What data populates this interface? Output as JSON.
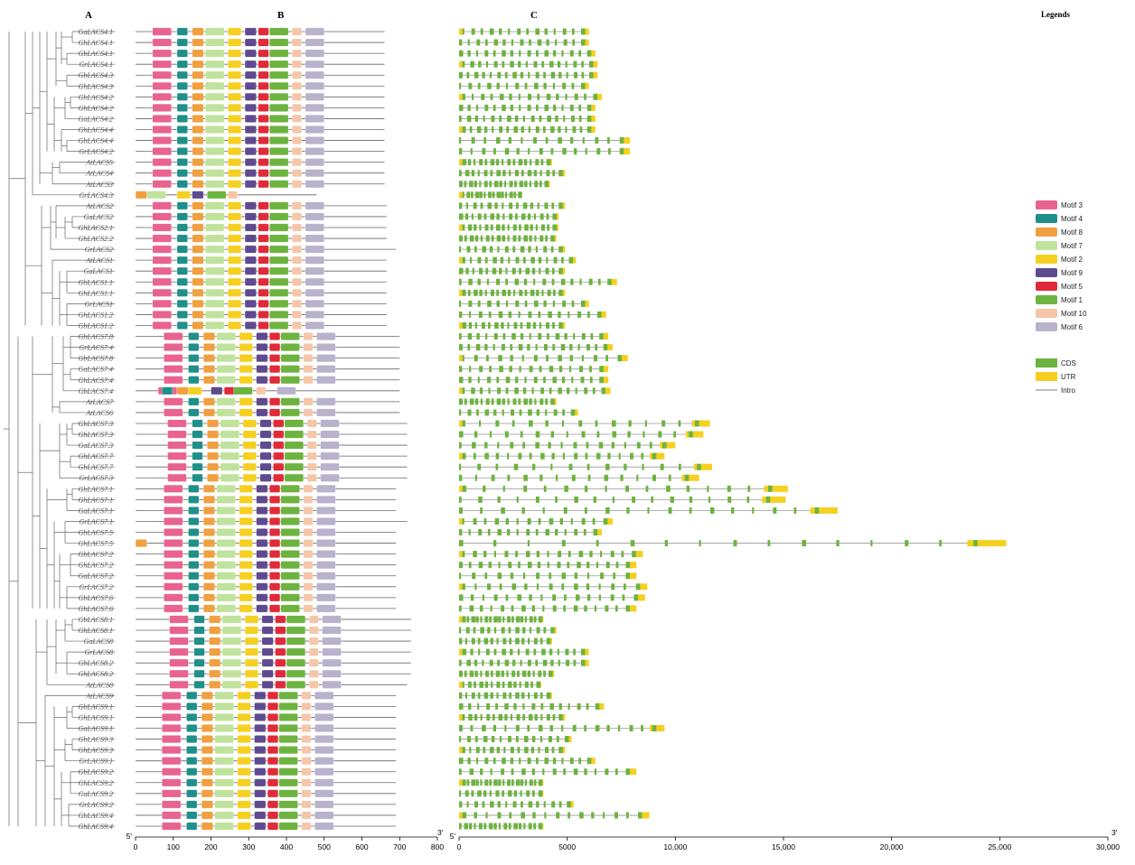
{
  "panel_labels": {
    "a": "A",
    "b": "B",
    "c": "C"
  },
  "legend": {
    "title": "Legends",
    "motifs": [
      {
        "label": "Motif 3",
        "color": "#e8638f"
      },
      {
        "label": "Motif 4",
        "color": "#1f8f8a"
      },
      {
        "label": "Motif 8",
        "color": "#f0a040"
      },
      {
        "label": "Motif 7",
        "color": "#bfe39c"
      },
      {
        "label": "Motif 2",
        "color": "#f5d020"
      },
      {
        "label": "Motif 9",
        "color": "#5e4a8f"
      },
      {
        "label": "Motif 5",
        "color": "#e02a3a"
      },
      {
        "label": "Motif 1",
        "color": "#6db33f"
      },
      {
        "label": "Motif 10",
        "color": "#f6c6a8"
      },
      {
        "label": "Motif 6",
        "color": "#b8b2cc"
      }
    ],
    "gene": [
      {
        "label": "CDS",
        "color": "#6db33f"
      },
      {
        "label": "UTR",
        "color": "#f5d020"
      },
      {
        "label": "Intro",
        "color": "#999999"
      }
    ]
  },
  "axis_b": {
    "ticks": [
      "0",
      "100",
      "200",
      "300",
      "400",
      "500",
      "600",
      "700",
      "800"
    ],
    "start": "5'",
    "end": "3'"
  },
  "axis_c": {
    "ticks": [
      "0",
      "5000",
      "10,000",
      "15,000",
      "20,000",
      "25,000",
      "30,000"
    ],
    "start": "5'",
    "end": "3'"
  },
  "genes": [
    {
      "name": "GaLACS4.1",
      "len": 660,
      "ge": 6000
    },
    {
      "name": "GhLACS4.1",
      "len": 660,
      "ge": 6000
    },
    {
      "name": "GbLACS4.1",
      "len": 660,
      "ge": 6300
    },
    {
      "name": "GrLACS4.1",
      "len": 660,
      "ge": 6400
    },
    {
      "name": "GbLACS4.3",
      "len": 660,
      "ge": 6400
    },
    {
      "name": "GhLACS4.3",
      "len": 660,
      "ge": 6000
    },
    {
      "name": "GbLACS4.2",
      "len": 660,
      "ge": 6600
    },
    {
      "name": "GhLACS4.2",
      "len": 660,
      "ge": 6300
    },
    {
      "name": "GaLACS4.2",
      "len": 660,
      "ge": 6300
    },
    {
      "name": "GhLACS4.4",
      "len": 660,
      "ge": 6300
    },
    {
      "name": "GbLACS4.4",
      "len": 660,
      "ge": 7900
    },
    {
      "name": "GrLACS4.2",
      "len": 660,
      "ge": 7900
    },
    {
      "name": "AtLACS5",
      "len": 660,
      "ge": 4300
    },
    {
      "name": "AtLACS4",
      "len": 660,
      "ge": 4900
    },
    {
      "name": "AtLACS3",
      "len": 660,
      "ge": 4200
    },
    {
      "name": "GrLACS4.3",
      "len": 480,
      "ge": 2900
    },
    {
      "name": "AtLACS2",
      "len": 665,
      "ge": 4900
    },
    {
      "name": "GaLACS2",
      "len": 665,
      "ge": 4600
    },
    {
      "name": "GhLACS2.1",
      "len": 665,
      "ge": 4600
    },
    {
      "name": "GhLACS2.2",
      "len": 665,
      "ge": 4500
    },
    {
      "name": "GrLACS2",
      "len": 690,
      "ge": 4900
    },
    {
      "name": "AtLACS1",
      "len": 665,
      "ge": 5400
    },
    {
      "name": "GaLACS1",
      "len": 665,
      "ge": 4900
    },
    {
      "name": "GbLACS1.1",
      "len": 665,
      "ge": 7300
    },
    {
      "name": "GhLACS1.1",
      "len": 665,
      "ge": 4900
    },
    {
      "name": "GrLACS1",
      "len": 665,
      "ge": 6000
    },
    {
      "name": "GhLACS1.2",
      "len": 665,
      "ge": 6800
    },
    {
      "name": "GbLACS1.2",
      "len": 665,
      "ge": 4900
    },
    {
      "name": "GhLACS7.8",
      "len": 700,
      "ge": 6900
    },
    {
      "name": "GrLACS7.4",
      "len": 700,
      "ge": 7100
    },
    {
      "name": "GbLACS7.8",
      "len": 700,
      "ge": 7800
    },
    {
      "name": "GaLACS7.4",
      "len": 700,
      "ge": 6900
    },
    {
      "name": "GhLACS7.4",
      "len": 700,
      "ge": 6900
    },
    {
      "name": "GbLACS7.4",
      "len": 700,
      "ge": 7000
    },
    {
      "name": "AtLACS7",
      "len": 700,
      "ge": 4500
    },
    {
      "name": "AtLACS6",
      "len": 700,
      "ge": 5500
    },
    {
      "name": "GbLACS7.3",
      "len": 720,
      "ge": 11600
    },
    {
      "name": "GhLACS7.3",
      "len": 720,
      "ge": 11300
    },
    {
      "name": "GaLACS7.3",
      "len": 720,
      "ge": 10000
    },
    {
      "name": "GhLACS7.7",
      "len": 720,
      "ge": 9500
    },
    {
      "name": "GbLACS7.7",
      "len": 720,
      "ge": 11700
    },
    {
      "name": "GrLACS7.3",
      "len": 720,
      "ge": 11100
    },
    {
      "name": "GbLACS7.1",
      "len": 690,
      "ge": 15200
    },
    {
      "name": "GhLACS7.1",
      "len": 690,
      "ge": 15100
    },
    {
      "name": "GaLACS7.1",
      "len": 690,
      "ge": 17500
    },
    {
      "name": "GrLACS7.1",
      "len": 720,
      "ge": 7100
    },
    {
      "name": "GbLACS7.5",
      "len": 690,
      "ge": 6600
    },
    {
      "name": "GhLACS7.5",
      "len": 690,
      "ge": 25300
    },
    {
      "name": "GbLACS7.2",
      "len": 690,
      "ge": 8500
    },
    {
      "name": "GhLACS7.2",
      "len": 690,
      "ge": 8200
    },
    {
      "name": "GaLACS7.2",
      "len": 690,
      "ge": 8200
    },
    {
      "name": "GrLACS7.2",
      "len": 690,
      "ge": 8700
    },
    {
      "name": "GbLACS7.6",
      "len": 690,
      "ge": 8600
    },
    {
      "name": "GhLACS7.6",
      "len": 690,
      "ge": 8200
    },
    {
      "name": "GbLACS8.1",
      "len": 730,
      "ge": 3900
    },
    {
      "name": "GhLACS8.1",
      "len": 730,
      "ge": 4500
    },
    {
      "name": "GaLACS8",
      "len": 730,
      "ge": 4300
    },
    {
      "name": "GrLACS8",
      "len": 730,
      "ge": 6000
    },
    {
      "name": "GbLACS8.2",
      "len": 730,
      "ge": 6000
    },
    {
      "name": "GhLACS8.2",
      "len": 730,
      "ge": 4400
    },
    {
      "name": "AtLACS8",
      "len": 720,
      "ge": 3800
    },
    {
      "name": "AtLACS9",
      "len": 690,
      "ge": 4300
    },
    {
      "name": "GbLACS9.1",
      "len": 690,
      "ge": 6700
    },
    {
      "name": "GhLACS9.1",
      "len": 690,
      "ge": 4900
    },
    {
      "name": "GaLACS9.1",
      "len": 690,
      "ge": 9500
    },
    {
      "name": "GbLACS9.3",
      "len": 690,
      "ge": 5200
    },
    {
      "name": "GhLACS9.3",
      "len": 690,
      "ge": 4900
    },
    {
      "name": "GrLACS9.1",
      "len": 690,
      "ge": 6300
    },
    {
      "name": "GbLACS9.2",
      "len": 690,
      "ge": 8200
    },
    {
      "name": "GhLACS9.2",
      "len": 690,
      "ge": 3900
    },
    {
      "name": "GaLACS9.2",
      "len": 690,
      "ge": 3900
    },
    {
      "name": "GrLACS9.2",
      "len": 690,
      "ge": 5300
    },
    {
      "name": "GbLACS9.4",
      "len": 690,
      "ge": 8800
    },
    {
      "name": "GhLACS9.4",
      "len": 690,
      "ge": 3900
    }
  ]
}
